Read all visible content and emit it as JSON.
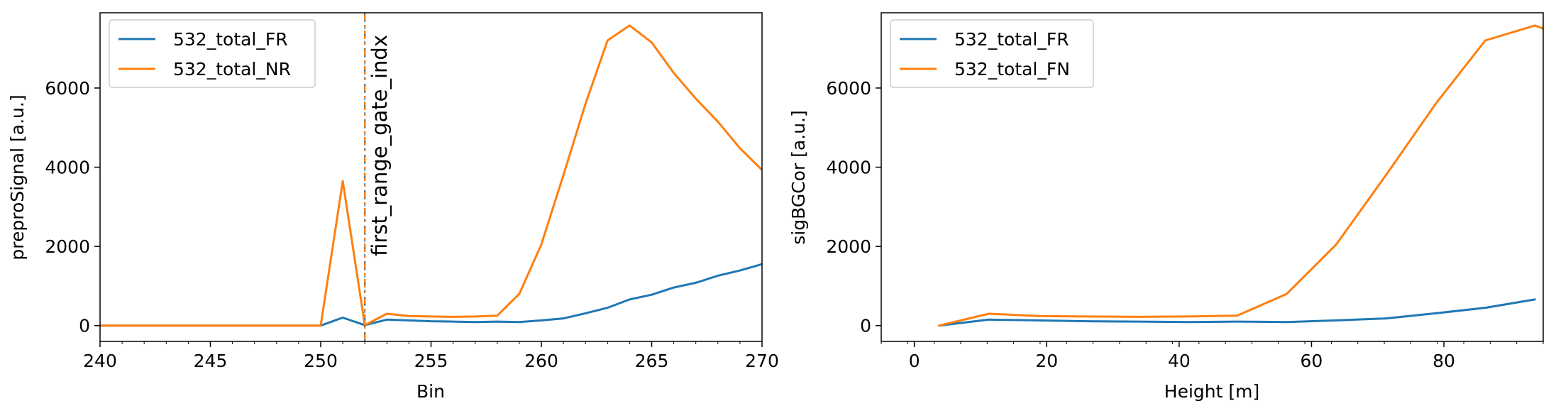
{
  "colors": {
    "fr": "#1f77b4",
    "nr": "#ff7f0e"
  },
  "chart_data": [
    {
      "type": "line",
      "xlabel": "Bin",
      "ylabel": "preproSignal [a.u.]",
      "xlim": [
        240,
        270
      ],
      "ylim": [
        -400,
        7900
      ],
      "xticks": [
        240,
        245,
        250,
        255,
        260,
        265,
        270
      ],
      "yticks": [
        0,
        2000,
        4000,
        6000
      ],
      "legend_position": "upper-left",
      "annotation": {
        "label": "first_range_gate_indx",
        "x": 252
      },
      "series": [
        {
          "name": "532_total_FR",
          "color": "#1f77b4",
          "x": [
            240,
            241,
            242,
            243,
            244,
            245,
            246,
            247,
            248,
            249,
            250,
            251,
            252,
            253,
            254,
            255,
            256,
            257,
            258,
            259,
            260,
            261,
            262,
            263,
            264,
            265,
            266,
            267,
            268,
            269,
            270
          ],
          "y": [
            0,
            0,
            0,
            0,
            0,
            0,
            0,
            0,
            0,
            0,
            0,
            200,
            10,
            150,
            130,
            110,
            100,
            90,
            100,
            90,
            130,
            180,
            310,
            450,
            660,
            780,
            960,
            1080,
            1260,
            1390,
            1550
          ]
        },
        {
          "name": "532_total_NR",
          "color": "#ff7f0e",
          "x": [
            240,
            241,
            242,
            243,
            244,
            245,
            246,
            247,
            248,
            249,
            250,
            251,
            252,
            253,
            254,
            255,
            256,
            257,
            258,
            259,
            260,
            261,
            262,
            263,
            264,
            265,
            266,
            267,
            268,
            269,
            270
          ],
          "y": [
            0,
            0,
            0,
            0,
            0,
            0,
            0,
            0,
            0,
            0,
            0,
            3650,
            10,
            300,
            240,
            230,
            220,
            230,
            250,
            800,
            2050,
            3800,
            5600,
            7200,
            7580,
            7150,
            6380,
            5730,
            5150,
            4480,
            3930
          ]
        }
      ]
    },
    {
      "type": "line",
      "xlabel": "Height [m]",
      "ylabel": "sigBGCor [a.u.]",
      "xlim": [
        -5,
        95
      ],
      "ylim": [
        -400,
        7900
      ],
      "xticks": [
        0,
        20,
        40,
        60,
        80
      ],
      "yticks": [
        0,
        2000,
        4000,
        6000
      ],
      "legend_position": "upper-left",
      "series": [
        {
          "name": "532_total_FR",
          "color": "#1f77b4",
          "x": [
            3.75,
            11.25,
            18.75,
            26.25,
            33.75,
            41.25,
            48.75,
            56.25,
            63.75,
            71.25,
            78.75,
            86.25,
            93.75
          ],
          "y": [
            0,
            150,
            130,
            110,
            100,
            90,
            100,
            90,
            130,
            180,
            310,
            450,
            660
          ]
        },
        {
          "name": "532_total_FN",
          "color": "#ff7f0e",
          "x": [
            3.75,
            11.25,
            18.75,
            26.25,
            33.75,
            41.25,
            48.75,
            56.25,
            63.75,
            71.25,
            78.75,
            86.25,
            93.75,
            95
          ],
          "y": [
            0,
            300,
            240,
            230,
            220,
            230,
            250,
            800,
            2050,
            3800,
            5600,
            7200,
            7580,
            7500
          ]
        }
      ]
    }
  ]
}
